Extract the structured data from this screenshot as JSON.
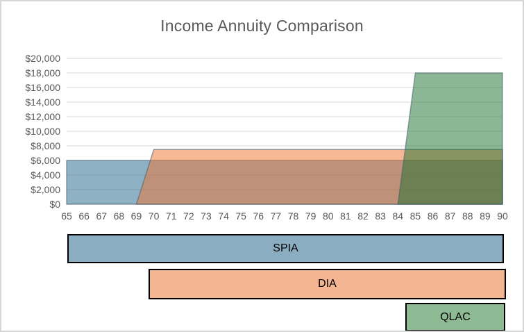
{
  "window": {
    "background": "#FFFFFF",
    "frame_border_color": "#D6D6D6"
  },
  "chart_data": {
    "type": "area",
    "title": "Income Annuity Comparison",
    "title_color": "#595959",
    "axis_text_color": "#595959",
    "gridline_color": "#D9D9D9",
    "grid": "horizontal-on",
    "legend_position": "none",
    "xlabel": "",
    "ylabel": "",
    "x_range": [
      65,
      90
    ],
    "y_range": [
      0,
      20000
    ],
    "y_step": 2000,
    "x_ticks": [
      "65",
      "66",
      "67",
      "68",
      "69",
      "70",
      "71",
      "72",
      "73",
      "74",
      "75",
      "76",
      "77",
      "78",
      "79",
      "80",
      "81",
      "82",
      "83",
      "84",
      "85",
      "86",
      "87",
      "88",
      "89",
      "90"
    ],
    "y_ticks": [
      "$20,000",
      "$18,000",
      "$16,000",
      "$14,000",
      "$12,000",
      "$10,000",
      "$8,000",
      "$6,000",
      "$4,000",
      "$2,000",
      "$0"
    ],
    "series": [
      {
        "name": "SPIA",
        "annual_income": 6000,
        "points": [
          [
            65,
            6000
          ],
          [
            90,
            6000
          ]
        ],
        "fill": "rgba(31,100,138,0.5)",
        "stroke": "rgba(70,95,110,0.55)"
      },
      {
        "name": "DIA",
        "annual_income": 7500,
        "points": [
          [
            69,
            0
          ],
          [
            70,
            7500
          ],
          [
            90,
            7500
          ]
        ],
        "fill": "rgba(240,114,44,0.5)",
        "stroke": "rgba(70,95,110,0.55)"
      },
      {
        "name": "QLAC",
        "annual_income": 18000,
        "points": [
          [
            84,
            0
          ],
          [
            85,
            18000
          ],
          [
            90,
            18000
          ]
        ],
        "fill": "rgba(26,111,46,0.5)",
        "stroke": "rgba(70,95,110,0.55)"
      }
    ]
  },
  "timeline_bars": [
    {
      "label": "SPIA",
      "start_age": 65,
      "end_age": 90,
      "fill": "#8AADC1",
      "border": "#000000",
      "text_color": "#000000"
    },
    {
      "label": "DIA",
      "start_age": 70,
      "end_age": 90,
      "fill": "#F4B592",
      "border": "#000000",
      "text_color": "#000000"
    },
    {
      "label": "QLAC",
      "start_age": 85,
      "end_age": 90,
      "fill": "#8DBA92",
      "border": "#000000",
      "text_color": "#000000"
    }
  ]
}
